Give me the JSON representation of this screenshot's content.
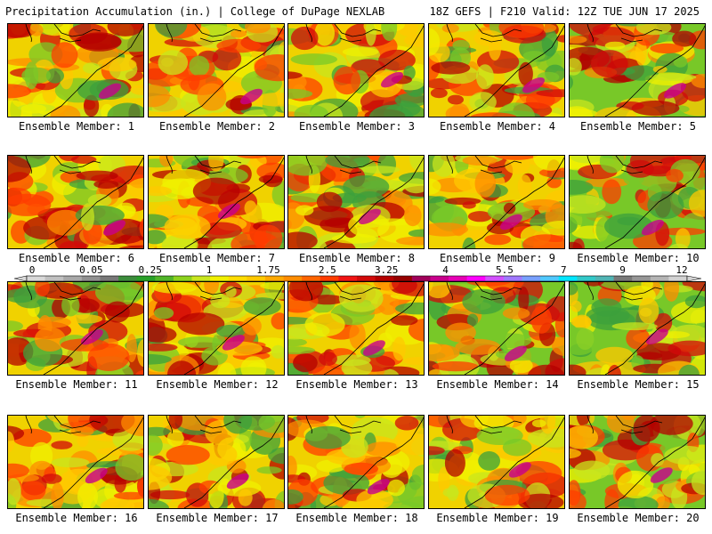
{
  "header": {
    "left": "Precipitation Accumulation (in.) | College of DuPage NEXLAB",
    "right": "18Z GEFS | F210 Valid: 12Z TUE JUN 17 2025"
  },
  "panels": [
    {
      "label": "Ensemble Member: 1"
    },
    {
      "label": "Ensemble Member: 2"
    },
    {
      "label": "Ensemble Member: 3"
    },
    {
      "label": "Ensemble Member: 4"
    },
    {
      "label": "Ensemble Member: 5"
    },
    {
      "label": "Ensemble Member: 6"
    },
    {
      "label": "Ensemble Member: 7"
    },
    {
      "label": "Ensemble Member: 8"
    },
    {
      "label": "Ensemble Member: 9"
    },
    {
      "label": "Ensemble Member: 10"
    },
    {
      "label": "Ensemble Member: 11"
    },
    {
      "label": "Ensemble Member: 12"
    },
    {
      "label": "Ensemble Member: 13"
    },
    {
      "label": "Ensemble Member: 14"
    },
    {
      "label": "Ensemble Member: 15"
    },
    {
      "label": "Ensemble Member: 16"
    },
    {
      "label": "Ensemble Member: 17"
    },
    {
      "label": "Ensemble Member: 18"
    },
    {
      "label": "Ensemble Member: 19"
    },
    {
      "label": "Ensemble Member: 20"
    }
  ],
  "colorbar": {
    "tick_labels": [
      "0",
      "0.05",
      "0.25",
      "1",
      "1.75",
      "2.5",
      "3.25",
      "4",
      "5.5",
      "7",
      "9",
      "12"
    ],
    "colors": [
      "#d8d8d8",
      "#c0c0c0",
      "#a8a8a8",
      "#909090",
      "#787878",
      "#3c8c3c",
      "#28a028",
      "#50b428",
      "#8cd21e",
      "#c8e61e",
      "#f0f000",
      "#ffdc00",
      "#ffc800",
      "#ffa800",
      "#ff8c00",
      "#ff6400",
      "#ff3c00",
      "#f01414",
      "#d20a0a",
      "#b40000",
      "#960000",
      "#a0005a",
      "#c8008c",
      "#e600b4",
      "#ff00ff",
      "#d250ff",
      "#a078ff",
      "#78a0ff",
      "#50c8ff",
      "#00e6ff",
      "#32c8c8",
      "#50b4b4",
      "#787878",
      "#969696",
      "#b4b4b4",
      "#d2d2d2"
    ]
  }
}
